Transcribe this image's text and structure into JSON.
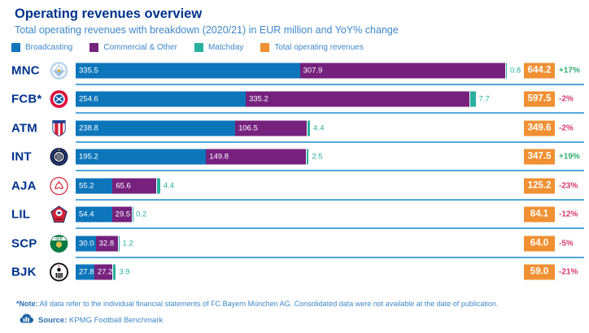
{
  "header": {
    "title": "Operating revenues overview",
    "subtitle": "Total operating revenues with breakdown (2020/21) in EUR million and YoY% change"
  },
  "legend": [
    {
      "label": "Broadcasting",
      "color": "#0d76bb",
      "icon": "broadcasting-swatch-icon"
    },
    {
      "label": "Commercial & Other",
      "color": "#75217d",
      "icon": "commercial-swatch-icon"
    },
    {
      "label": "Matchday",
      "color": "#2ab0a0",
      "icon": "matchday-swatch-icon"
    },
    {
      "label": "Total operating revenues",
      "color": "#f09033",
      "icon": "total-swatch-icon"
    }
  ],
  "chart_data": {
    "type": "bar",
    "orientation": "horizontal",
    "stacked": true,
    "unit": "EUR million",
    "title": "Operating revenues overview",
    "categories": [
      "MNC",
      "FCB*",
      "ATM",
      "INT",
      "AJA",
      "LIL",
      "SCP",
      "BJK"
    ],
    "club_icons": [
      "mnc-crest-icon",
      "fcb-crest-icon",
      "atm-crest-icon",
      "int-crest-icon",
      "aja-crest-icon",
      "lil-crest-icon",
      "scp-crest-icon",
      "bjk-crest-icon"
    ],
    "series": [
      {
        "name": "Broadcasting",
        "color": "#0d76bb",
        "values": [
          335.5,
          254.6,
          238.8,
          195.2,
          55.2,
          54.4,
          30.0,
          27.8
        ]
      },
      {
        "name": "Commercial & Other",
        "color": "#75217d",
        "values": [
          307.9,
          335.2,
          106.5,
          149.8,
          65.6,
          29.5,
          32.8,
          27.2
        ]
      },
      {
        "name": "Matchday",
        "color": "#2ab0a0",
        "values": [
          0.8,
          7.7,
          4.4,
          2.5,
          4.4,
          0.2,
          1.2,
          3.9
        ]
      }
    ],
    "totals": [
      644.2,
      597.5,
      349.6,
      347.5,
      125.2,
      84.1,
      64.0,
      59.0
    ],
    "yoy": [
      "+17%",
      "-2%",
      "-2%",
      "+19%",
      "-23%",
      "-12%",
      "-5%",
      "-21%"
    ],
    "total_color": "#f09033",
    "yoy_positive_color": "#2fae6f",
    "yoy_negative_color": "#d93a6d",
    "xlim": [
      0,
      644.2
    ],
    "grid": false,
    "legend_position": "top"
  },
  "footer": {
    "note_label": "*Note:",
    "note_text": " All data refer to the individual financial statements of FC Bayern München AG. Consolidated data were not available at the date of publication.",
    "source_icon": "football-benchmark-chart-icon",
    "source_label": "Source:",
    "source_text": " KPMG Football Benchmark"
  }
}
